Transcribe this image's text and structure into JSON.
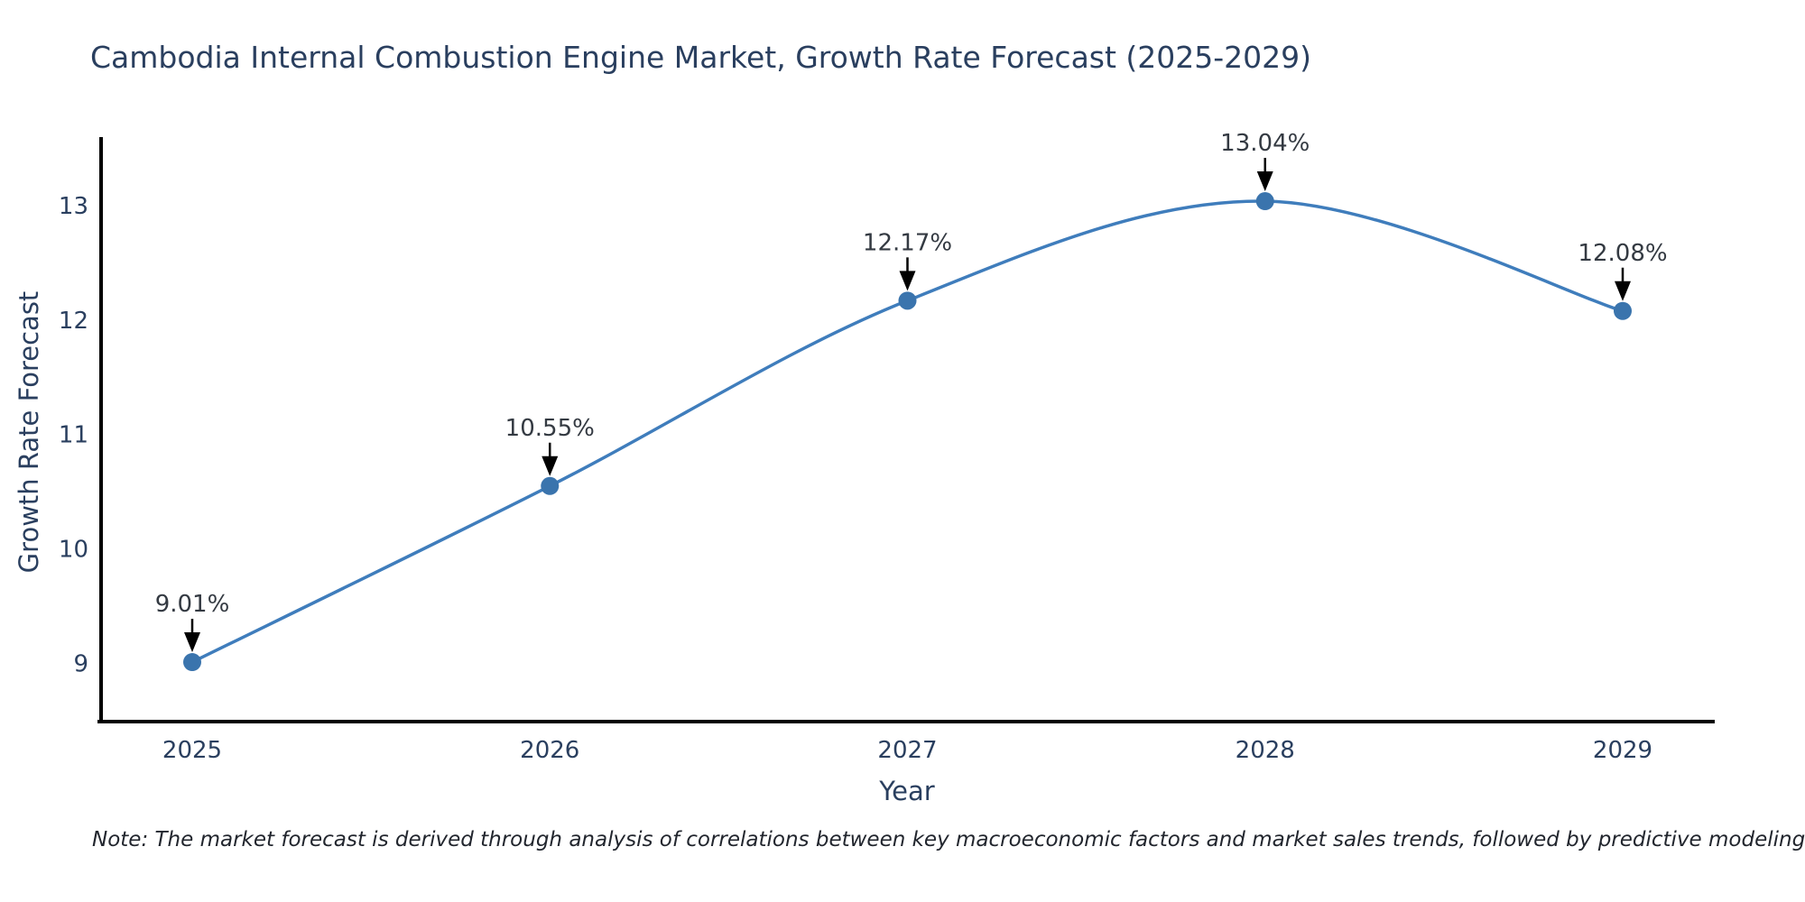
{
  "chart_data": {
    "type": "line",
    "title": "Cambodia Internal Combustion Engine Market, Growth Rate Forecast (2025-2029)",
    "xlabel": "Year",
    "ylabel": "Growth Rate Forecast",
    "categories": [
      "2025",
      "2026",
      "2027",
      "2028",
      "2029"
    ],
    "series": [
      {
        "name": "Growth Rate Forecast",
        "values": [
          9.01,
          10.55,
          12.17,
          13.04,
          12.08
        ]
      }
    ],
    "point_labels": [
      "9.01%",
      "10.55%",
      "12.17%",
      "13.04%",
      "12.08%"
    ],
    "y_ticks": [
      9,
      10,
      11,
      12,
      13
    ],
    "ylim": [
      8.49,
      13.6
    ],
    "line_shape": "spline",
    "grid": false,
    "legend_position": "none",
    "colors": {
      "line": "#3f7dbc",
      "marker": "#3a74ad",
      "axis": "#000000",
      "tick_text": "#2a3f5f",
      "annotation_text": "#343a42",
      "arrow": "#000000",
      "background": "#ffffff"
    }
  },
  "note": {
    "text": "Note: The market forecast is derived through analysis of correlations between key macroeconomic factors and market sales trends, followed by predictive modeling to project future sales"
  }
}
